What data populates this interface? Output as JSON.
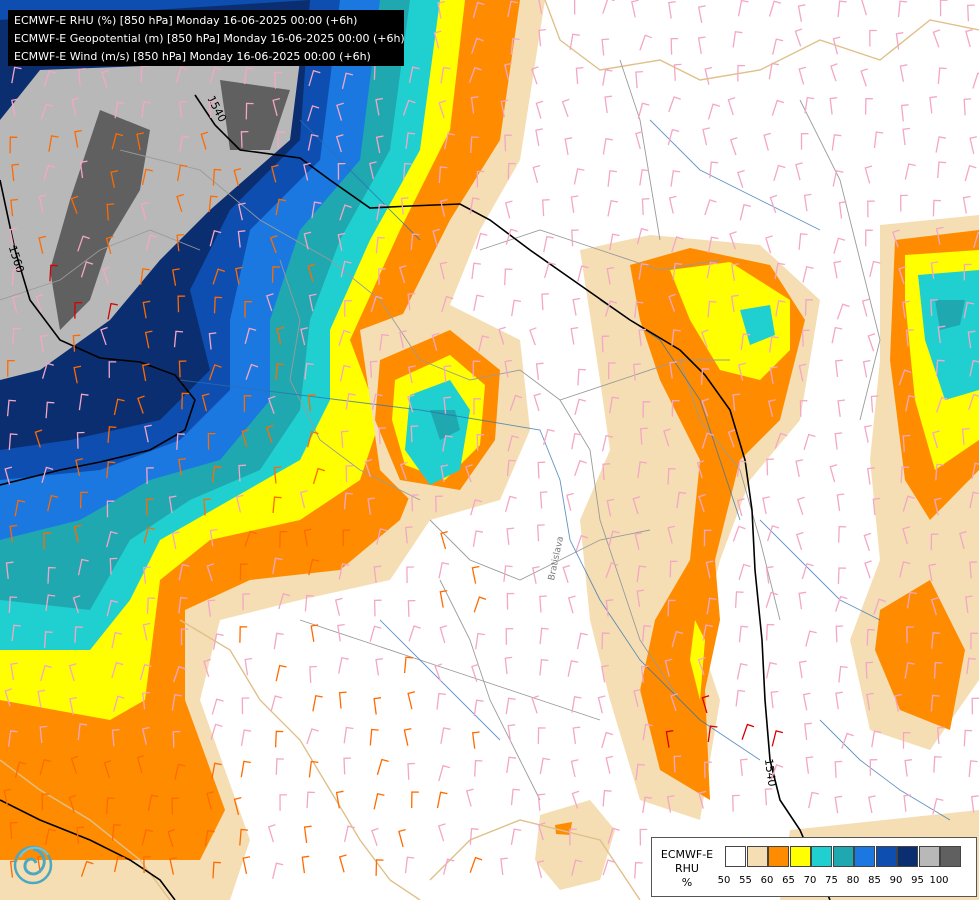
{
  "header": {
    "lines": [
      "ECMWF-E RHU (%) [850 hPa] Monday 16-06-2025 00:00 (+6h)",
      "ECMWF-E Geopotential (m) [850 hPa] Monday 16-06-2025 00:00 (+6h)",
      "ECMWF-E Wind (m/s) [850 hPa] Monday 16-06-2025 00:00 (+6h)"
    ]
  },
  "map": {
    "contour_labels": [
      "1540",
      "1540",
      "1560"
    ],
    "place_label": "Bratislava",
    "logo": "ecmwf-swirl-logo"
  },
  "legend": {
    "title_lines": [
      "ECMWF-E",
      "RHU",
      "%"
    ],
    "bins": [
      {
        "label": "50",
        "color": "#ffffff"
      },
      {
        "label": "55",
        "color": "#f5deb3"
      },
      {
        "label": "60",
        "color": "#ff8c00"
      },
      {
        "label": "65",
        "color": "#ffff00"
      },
      {
        "label": "70",
        "color": "#20d0d0"
      },
      {
        "label": "75",
        "color": "#20a8b0"
      },
      {
        "label": "80",
        "color": "#1a78e0"
      },
      {
        "label": "85",
        "color": "#0d4eb0"
      },
      {
        "label": "90",
        "color": "#0b2e70"
      },
      {
        "label": "95",
        "color": "#b8b8b8"
      },
      {
        "label": "100",
        "color": "#606060"
      }
    ]
  },
  "colors": {
    "wind_low": "#f4a6c6",
    "wind_mid": "#ff6a00",
    "wind_high": "#d80000",
    "contour": "#000000",
    "border": "#999999",
    "river": "#2f6fb0",
    "coast": "#e0c08a"
  }
}
